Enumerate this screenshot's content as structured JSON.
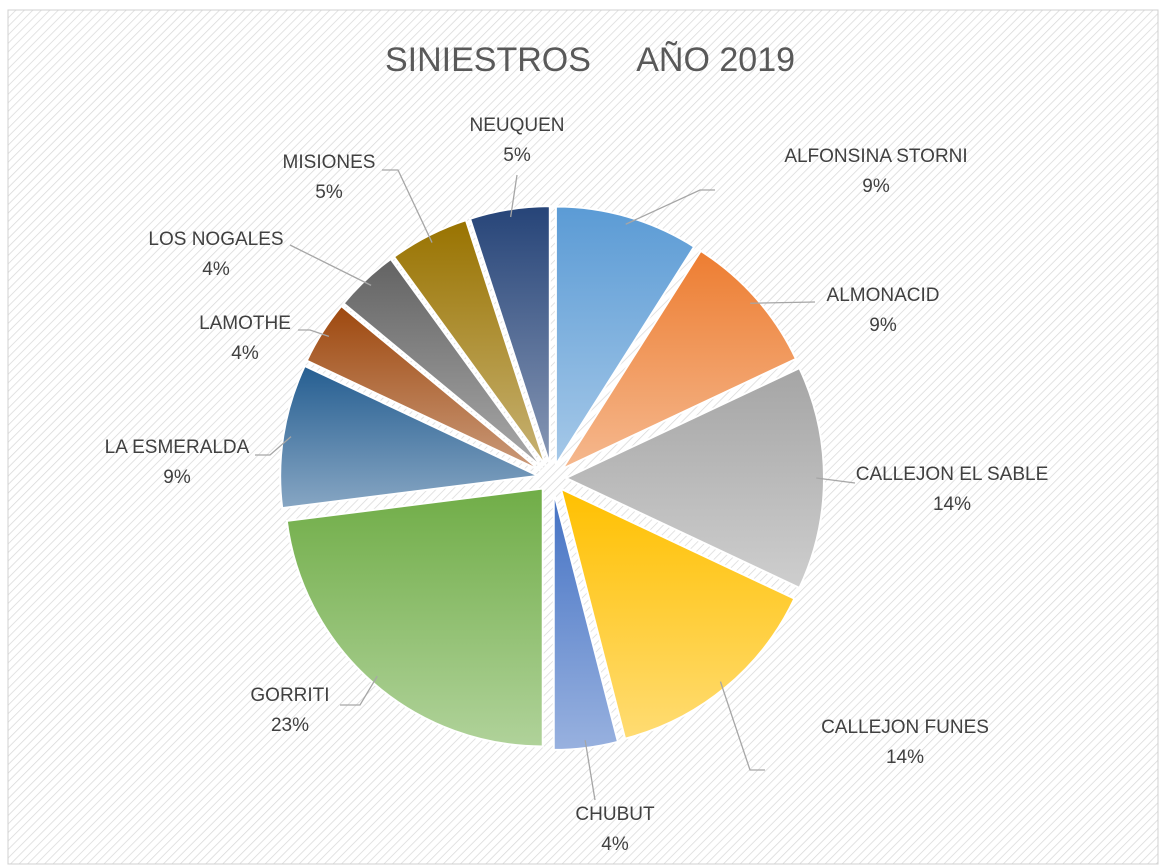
{
  "chart_data": {
    "type": "pie",
    "title": "SINIESTROS     AÑO 2019",
    "categories": [
      "ALFONSINA STORNI",
      "ALMONACID",
      "CALLEJON EL SABLE",
      "CALLEJON FUNES",
      "CHUBUT",
      "GORRITI",
      "LA ESMERALDA",
      "LAMOTHE",
      "LOS NOGALES",
      "MISIONES",
      "NEUQUEN"
    ],
    "values": [
      9,
      9,
      14,
      14,
      4,
      23,
      9,
      4,
      4,
      5,
      5
    ],
    "value_labels": [
      "9%",
      "9%",
      "14%",
      "14%",
      "4%",
      "23%",
      "9%",
      "4%",
      "4%",
      "5%",
      "5%"
    ],
    "colors": [
      "#5b9bd5",
      "#ed7d31",
      "#a5a5a5",
      "#ffc000",
      "#4472c4",
      "#70ad47",
      "#255e91",
      "#9e480e",
      "#636363",
      "#997300",
      "#264478"
    ]
  }
}
